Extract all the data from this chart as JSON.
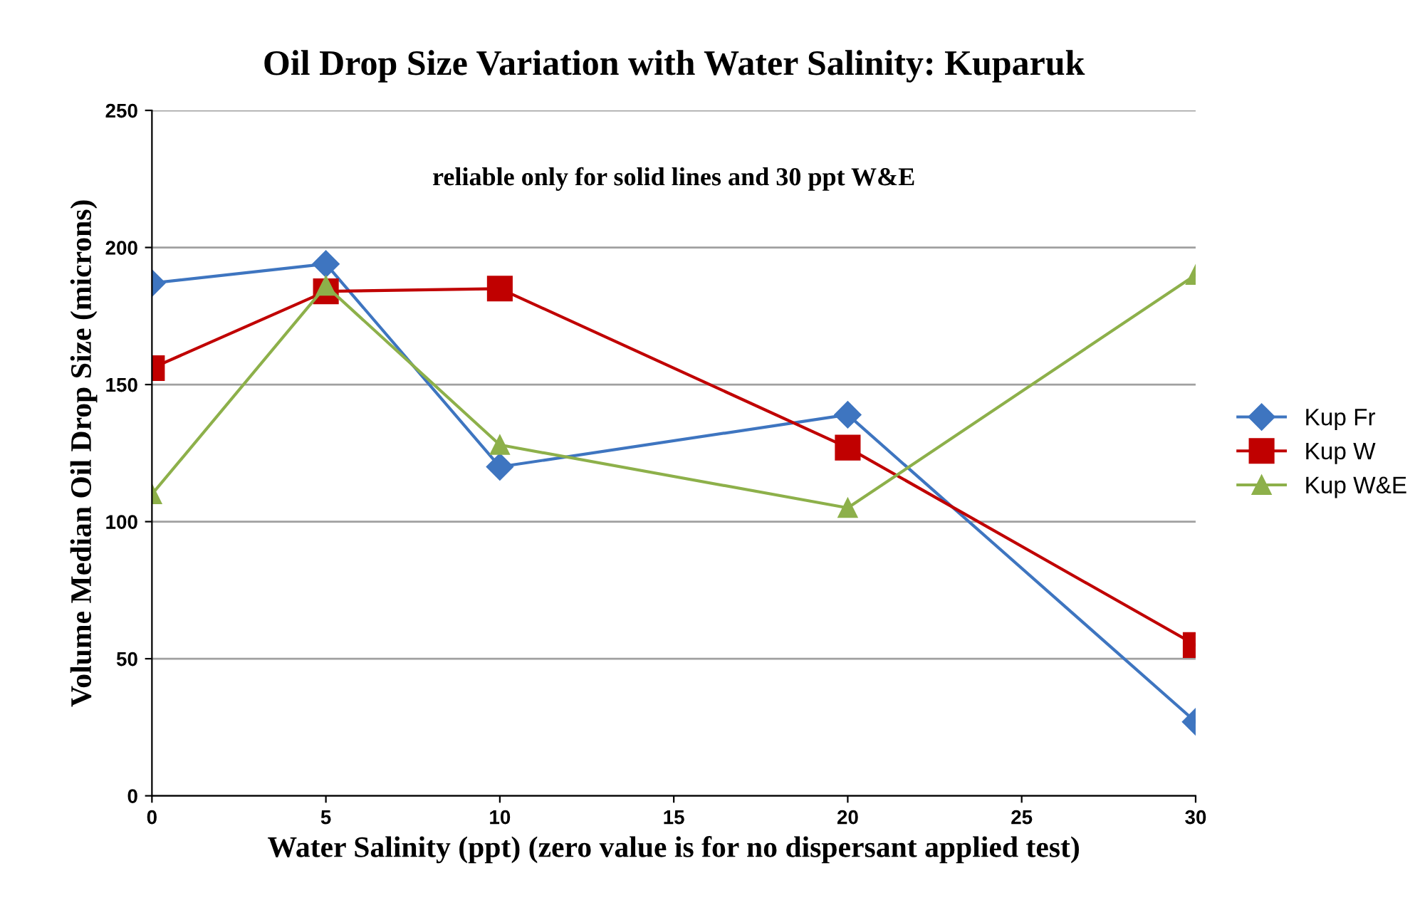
{
  "chart_data": {
    "type": "line",
    "title": "Oil Drop Size Variation with Water Salinity: Kuparuk",
    "xlabel": "Water Salinity (ppt) (zero value is for no dispersant applied test)",
    "ylabel": "Volume Median Oil Drop Size (microns)",
    "x": [
      0,
      5,
      10,
      20,
      30
    ],
    "series": [
      {
        "name": "Kup Fr",
        "color": "#3e75c0",
        "marker": "diamond",
        "values": [
          187,
          194,
          120,
          139,
          27
        ]
      },
      {
        "name": "Kup W",
        "color": "#c00000",
        "marker": "square",
        "values": [
          156,
          184,
          185,
          127,
          55
        ]
      },
      {
        "name": "Kup W&E",
        "color": "#8db04a",
        "marker": "triangle",
        "values": [
          110,
          186,
          128,
          105,
          190
        ]
      }
    ],
    "xlim": [
      0,
      30
    ],
    "xticks": [
      0,
      5,
      10,
      15,
      20,
      25,
      30
    ],
    "ylim": [
      0,
      250
    ],
    "yticks": [
      0,
      50,
      100,
      150,
      200,
      250
    ],
    "grid": "y",
    "legend": "right",
    "line_style": "solid",
    "annotations": [
      "reliable only for solid lines and 30 ppt W&E"
    ]
  }
}
